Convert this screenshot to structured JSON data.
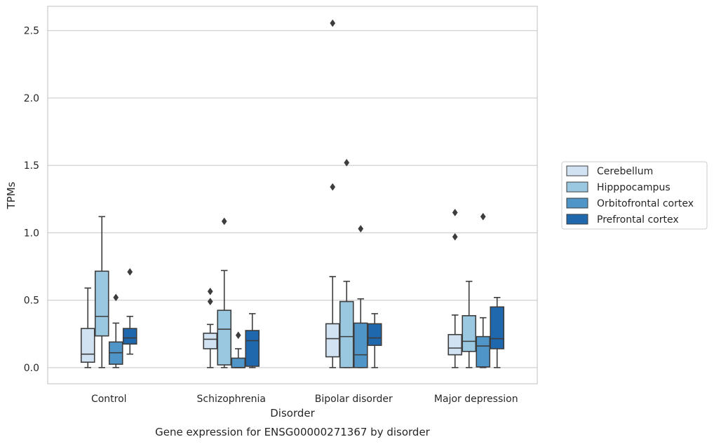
{
  "chart_data": {
    "type": "box",
    "title": "",
    "caption": "Gene expression for ENSG00000271367 by disorder",
    "xlabel": "Disorder",
    "ylabel": "TPMs",
    "ylim": [
      -0.12,
      2.68
    ],
    "yticks": [
      0.0,
      0.5,
      1.0,
      1.5,
      2.0,
      2.5
    ],
    "ytick_labels": [
      "0.0",
      "0.5",
      "1.0",
      "1.5",
      "2.0",
      "2.5"
    ],
    "grid": "horizontal",
    "legend_placement": "center-right-outside",
    "categories": [
      "Control",
      "Schizophrenia",
      "Bipolar disorder",
      "Major depression"
    ],
    "series": [
      {
        "name": "Cerebellum",
        "color": "#d1e2f2",
        "boxes": [
          {
            "whislo": 0.0,
            "q1": 0.04,
            "med": 0.1,
            "q3": 0.29,
            "whishi": 0.59,
            "fliers": []
          },
          {
            "whislo": 0.0,
            "q1": 0.14,
            "med": 0.21,
            "q3": 0.255,
            "whishi": 0.32,
            "fliers": [
              0.49,
              0.565
            ]
          },
          {
            "whislo": 0.0,
            "q1": 0.08,
            "med": 0.215,
            "q3": 0.325,
            "whishi": 0.675,
            "fliers": [
              1.34,
              2.555
            ]
          },
          {
            "whislo": 0.0,
            "q1": 0.095,
            "med": 0.145,
            "q3": 0.245,
            "whishi": 0.39,
            "fliers": [
              0.97,
              1.15
            ]
          }
        ]
      },
      {
        "name": "Hipppocampus",
        "color": "#9ac8e0",
        "boxes": [
          {
            "whislo": 0.0,
            "q1": 0.235,
            "med": 0.38,
            "q3": 0.715,
            "whishi": 1.12,
            "fliers": []
          },
          {
            "whislo": 0.0,
            "q1": 0.02,
            "med": 0.285,
            "q3": 0.425,
            "whishi": 0.72,
            "fliers": [
              1.085
            ]
          },
          {
            "whislo": 0.0,
            "q1": 0.0,
            "med": 0.23,
            "q3": 0.49,
            "whishi": 0.64,
            "fliers": [
              1.52
            ]
          },
          {
            "whislo": 0.0,
            "q1": 0.12,
            "med": 0.195,
            "q3": 0.385,
            "whishi": 0.64,
            "fliers": []
          }
        ]
      },
      {
        "name": "Orbitofrontal cortex",
        "color": "#5095c8",
        "boxes": [
          {
            "whislo": 0.0,
            "q1": 0.025,
            "med": 0.11,
            "q3": 0.19,
            "whishi": 0.33,
            "fliers": [
              0.52
            ]
          },
          {
            "whislo": 0.0,
            "q1": 0.0,
            "med": 0.0,
            "q3": 0.07,
            "whishi": 0.14,
            "fliers": [
              0.24
            ]
          },
          {
            "whislo": 0.0,
            "q1": 0.0,
            "med": 0.095,
            "q3": 0.33,
            "whishi": 0.51,
            "fliers": [
              1.03
            ]
          },
          {
            "whislo": 0.0,
            "q1": 0.005,
            "med": 0.16,
            "q3": 0.23,
            "whishi": 0.37,
            "fliers": [
              1.12
            ]
          }
        ]
      },
      {
        "name": "Prefrontal cortex",
        "color": "#2068ae",
        "boxes": [
          {
            "whislo": 0.1,
            "q1": 0.175,
            "med": 0.22,
            "q3": 0.29,
            "whishi": 0.38,
            "fliers": [
              0.71
            ]
          },
          {
            "whislo": 0.0,
            "q1": 0.01,
            "med": 0.2,
            "q3": 0.275,
            "whishi": 0.4,
            "fliers": []
          },
          {
            "whislo": 0.0,
            "q1": 0.165,
            "med": 0.22,
            "q3": 0.325,
            "whishi": 0.4,
            "fliers": []
          },
          {
            "whislo": 0.0,
            "q1": 0.14,
            "med": 0.215,
            "q3": 0.45,
            "whishi": 0.52,
            "fliers": []
          }
        ]
      }
    ]
  }
}
